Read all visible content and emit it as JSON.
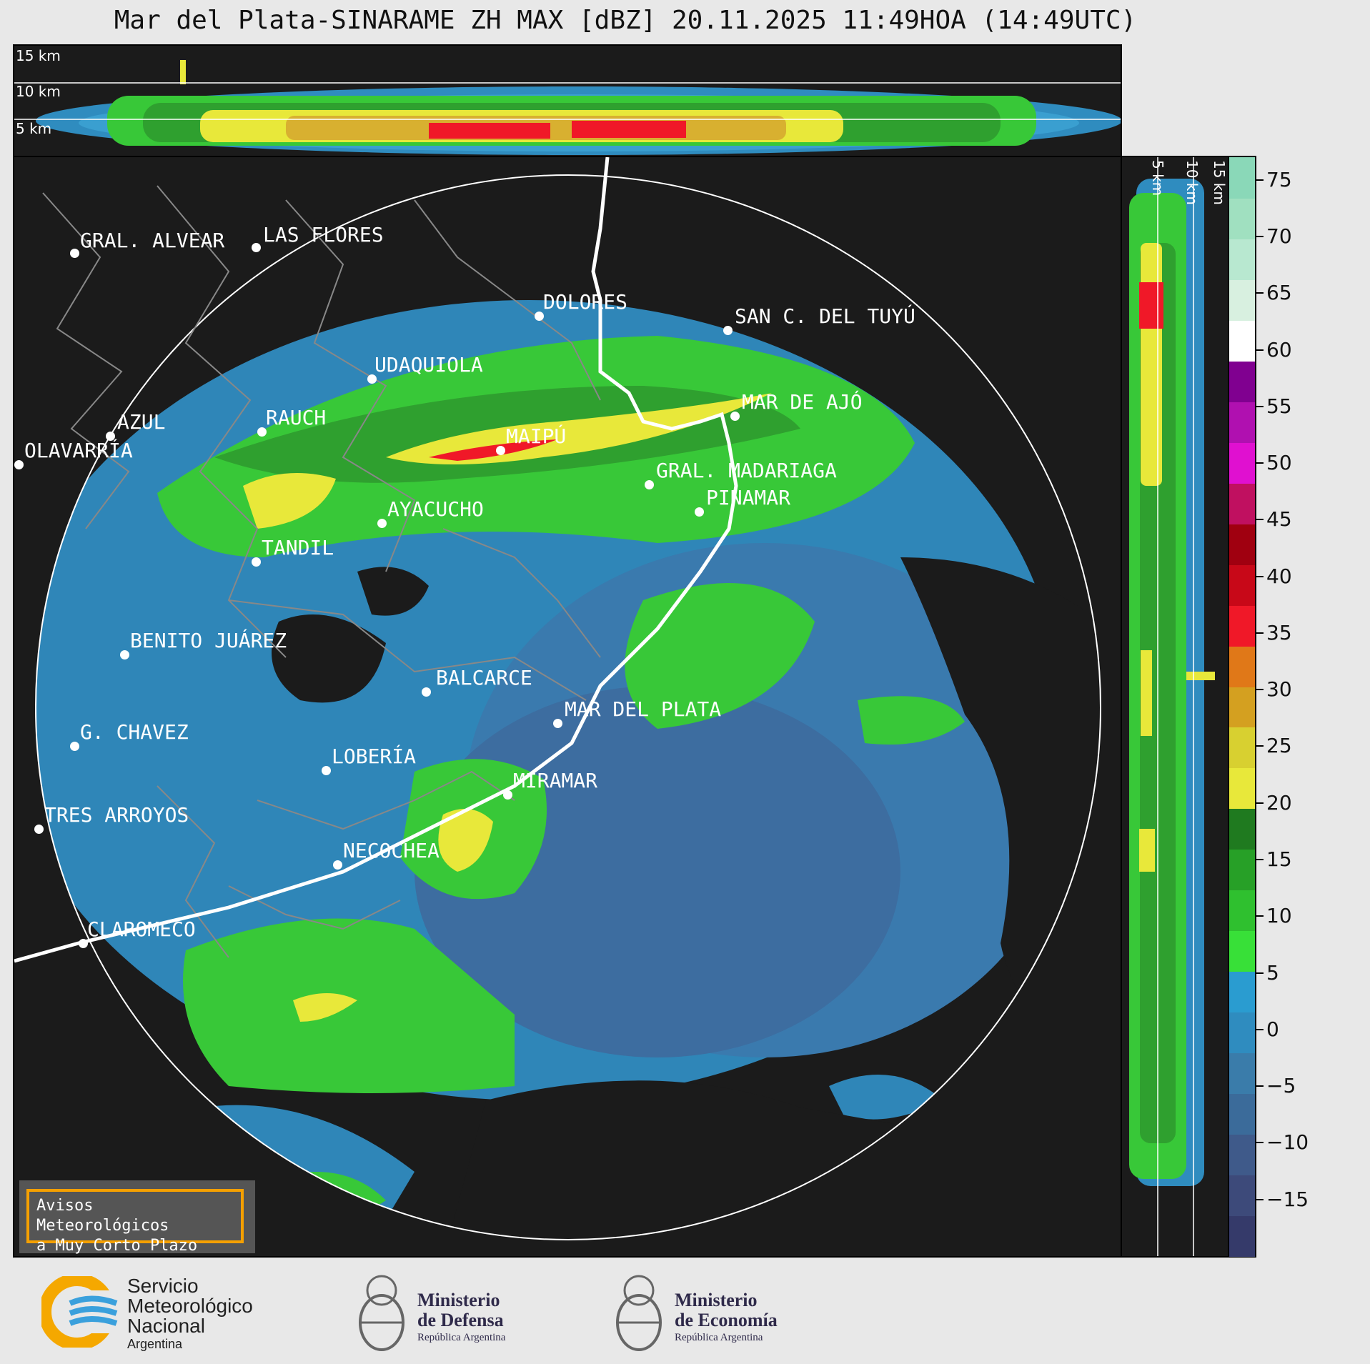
{
  "title": "Mar del Plata-SINARAME ZH MAX [dBZ] 20.11.2025 11:49HOA (14:49UTC)",
  "height_labels": [
    "15 km",
    "10 km",
    "5 km"
  ],
  "side_labels": [
    "5 km",
    "10 km",
    "15 km"
  ],
  "cities": [
    {
      "name": "GRAL. ALVEAR"
    },
    {
      "name": "LAS FLORES"
    },
    {
      "name": "DOLORES"
    },
    {
      "name": "SAN C. DEL TUYÚ"
    },
    {
      "name": "UDAQUIOLA"
    },
    {
      "name": "AZUL"
    },
    {
      "name": "RAUCH"
    },
    {
      "name": "OLAVARRÍA"
    },
    {
      "name": "MAIPÚ"
    },
    {
      "name": "MAR DE AJÓ"
    },
    {
      "name": "GRAL. MADARIAGA"
    },
    {
      "name": "PINAMAR"
    },
    {
      "name": "AYACUCHO"
    },
    {
      "name": "TANDIL"
    },
    {
      "name": "BENITO JUÁREZ"
    },
    {
      "name": "BALCARCE"
    },
    {
      "name": "MAR DEL PLATA"
    },
    {
      "name": "G. CHAVEZ"
    },
    {
      "name": "LOBERÍA"
    },
    {
      "name": "MIRAMAR"
    },
    {
      "name": "TRES ARROYOS"
    },
    {
      "name": "NECOCHEA"
    },
    {
      "name": "CLAROMECO"
    }
  ],
  "colorbar": {
    "unit": "dBZ",
    "ticks": [
      "75",
      "70",
      "65",
      "60",
      "55",
      "50",
      "45",
      "40",
      "35",
      "30",
      "25",
      "20",
      "15",
      "10",
      "5",
      "0",
      "−5",
      "−10",
      "−15"
    ],
    "range": [
      -20,
      77
    ],
    "colors": [
      "#353a6a",
      "#3d4a7a",
      "#3f5a8a",
      "#3b6b9a",
      "#3a7caa",
      "#2f8cbf",
      "#2a9cd0",
      "#38e038",
      "#2fc02f",
      "#27a027",
      "#1f7a1f",
      "#e8e83a",
      "#d8d030",
      "#d4a020",
      "#e07818",
      "#f01828",
      "#c80818",
      "#a00010",
      "#c01060",
      "#e010d0",
      "#b010b0",
      "#800090",
      "#ffffff",
      "#d8f0e0",
      "#b8e8d0",
      "#a0e0c0",
      "#8ad8b8"
    ]
  },
  "notice": {
    "line1": "Avisos Meteorológicos",
    "line2": "a Muy Corto Plazo"
  },
  "logos": {
    "smn": [
      "Servicio",
      "Meteorológico",
      "Nacional",
      "Argentina"
    ],
    "defensa": [
      "Ministerio",
      "de Defensa",
      "República Argentina"
    ],
    "economia": [
      "Ministerio",
      "de Economía",
      "República Argentina"
    ]
  }
}
